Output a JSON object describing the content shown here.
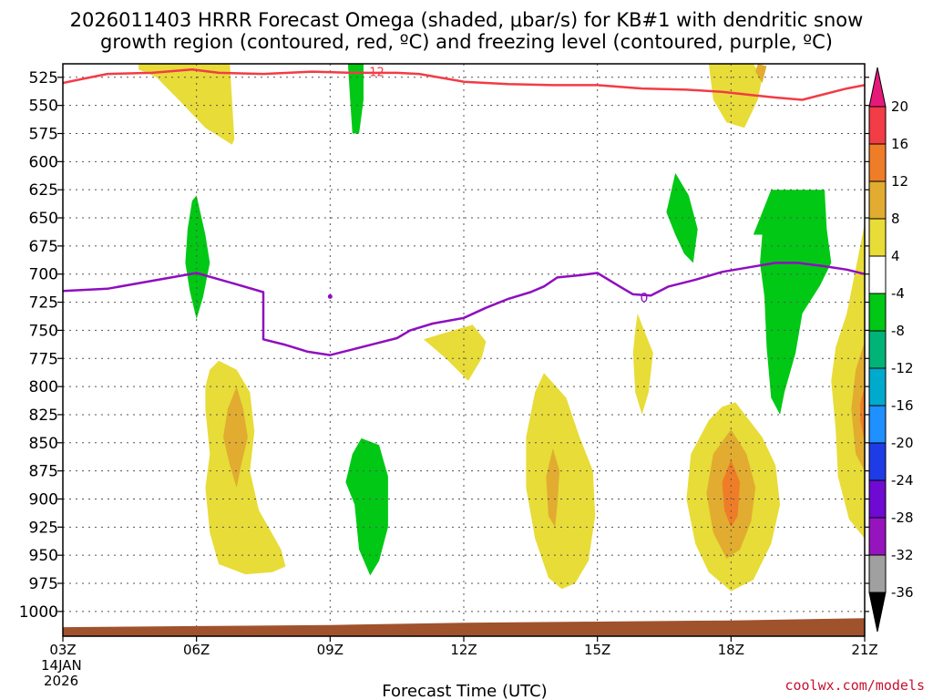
{
  "chart_data": {
    "type": "heatmap",
    "title_lines": [
      "2026011403 HRRR Forecast Omega (shaded, μbar/s) for KB#1 with dendritic snow",
      "growth region (contoured, red, ºC) and freezing level (contoured, purple, ºC)"
    ],
    "xlabel": "Forecast Time (UTC)",
    "x_ticks": [
      {
        "hour": 0,
        "label": "03Z"
      },
      {
        "hour": 3,
        "label": "06Z"
      },
      {
        "hour": 6,
        "label": "09Z"
      },
      {
        "hour": 9,
        "label": "12Z"
      },
      {
        "hour": 12,
        "label": "15Z"
      },
      {
        "hour": 15,
        "label": "18Z"
      },
      {
        "hour": 18,
        "label": "21Z"
      }
    ],
    "date_label": [
      "14JAN",
      "2026"
    ],
    "x_range_hours": [
      0,
      18
    ],
    "y_ticks": [
      "525",
      "550",
      "575",
      "600",
      "625",
      "650",
      "675",
      "700",
      "725",
      "750",
      "775",
      "800",
      "825",
      "850",
      "875",
      "900",
      "925",
      "950",
      "975",
      "1000"
    ],
    "y_range_hpa": [
      513,
      1022
    ],
    "grid": true,
    "colorbar": {
      "labels": [
        "20",
        "16",
        "12",
        "8",
        "4",
        "-4",
        "-8",
        "-12",
        "-16",
        "-20",
        "-24",
        "-28",
        "-32",
        "-36"
      ],
      "colors": [
        "#f23c46",
        "#ef7d28",
        "#e1ac30",
        "#e8dc38",
        "#ffffff",
        "#00c814",
        "#00b478",
        "#00aacc",
        "#1e90ff",
        "#1e3ce6",
        "#6e0ad2",
        "#9614be",
        "#a0a0a0"
      ],
      "top_arrow_color": "#e6197a",
      "bottom_arrow_color": "#000000"
    },
    "omega_colors": {
      "yellow": "#e8dc38",
      "orange1": "#e1ac30",
      "orange2": "#ef7d28",
      "green": "#00c814"
    },
    "omega_regions": [
      {
        "level": "yellow",
        "points": [
          [
            1.7,
            513
          ],
          [
            3.75,
            513
          ],
          [
            3.85,
            580
          ],
          [
            3.8,
            585
          ],
          [
            3.2,
            570
          ],
          [
            2.6,
            545
          ],
          [
            2.1,
            525
          ],
          [
            1.7,
            518
          ]
        ]
      },
      {
        "level": "yellow",
        "points": [
          [
            3.5,
            777
          ],
          [
            3.9,
            785
          ],
          [
            4.2,
            805
          ],
          [
            4.3,
            840
          ],
          [
            4.2,
            875
          ],
          [
            4.4,
            910
          ],
          [
            4.9,
            945
          ],
          [
            5.0,
            960
          ],
          [
            4.7,
            965
          ],
          [
            4.1,
            967
          ],
          [
            3.5,
            958
          ],
          [
            3.3,
            930
          ],
          [
            3.2,
            890
          ],
          [
            3.3,
            860
          ],
          [
            3.2,
            820
          ],
          [
            3.2,
            800
          ],
          [
            3.3,
            785
          ]
        ]
      },
      {
        "level": "orange1",
        "points": [
          [
            3.9,
            800
          ],
          [
            4.05,
            820
          ],
          [
            4.15,
            845
          ],
          [
            4.0,
            870
          ],
          [
            3.9,
            890
          ],
          [
            3.75,
            870
          ],
          [
            3.6,
            845
          ],
          [
            3.7,
            820
          ]
        ]
      },
      {
        "level": "green",
        "points": [
          [
            3.0,
            630
          ],
          [
            3.2,
            665
          ],
          [
            3.3,
            690
          ],
          [
            3.15,
            720
          ],
          [
            3.0,
            740
          ],
          [
            2.85,
            715
          ],
          [
            2.75,
            690
          ],
          [
            2.8,
            660
          ],
          [
            2.9,
            635
          ]
        ]
      },
      {
        "level": "green",
        "points": [
          [
            6.4,
            513
          ],
          [
            6.75,
            513
          ],
          [
            6.75,
            545
          ],
          [
            6.65,
            575
          ],
          [
            6.5,
            575
          ],
          [
            6.45,
            545
          ]
        ]
      },
      {
        "level": "green",
        "points": [
          [
            6.7,
            846
          ],
          [
            7.1,
            852
          ],
          [
            7.3,
            880
          ],
          [
            7.3,
            925
          ],
          [
            7.1,
            955
          ],
          [
            6.9,
            968
          ],
          [
            6.65,
            945
          ],
          [
            6.55,
            905
          ],
          [
            6.35,
            885
          ],
          [
            6.5,
            860
          ]
        ]
      },
      {
        "level": "yellow",
        "points": [
          [
            8.6,
            752
          ],
          [
            9.2,
            745
          ],
          [
            9.5,
            760
          ],
          [
            9.4,
            775
          ],
          [
            9.1,
            795
          ],
          [
            8.6,
            775
          ],
          [
            8.1,
            758
          ]
        ]
      },
      {
        "level": "yellow",
        "points": [
          [
            10.8,
            788
          ],
          [
            11.3,
            810
          ],
          [
            11.6,
            845
          ],
          [
            11.9,
            875
          ],
          [
            11.95,
            915
          ],
          [
            11.8,
            955
          ],
          [
            11.5,
            975
          ],
          [
            11.2,
            980
          ],
          [
            10.9,
            970
          ],
          [
            10.6,
            935
          ],
          [
            10.4,
            890
          ],
          [
            10.4,
            845
          ],
          [
            10.6,
            805
          ]
        ]
      },
      {
        "level": "orange1",
        "points": [
          [
            11.0,
            855
          ],
          [
            11.15,
            875
          ],
          [
            11.1,
            905
          ],
          [
            11.05,
            925
          ],
          [
            10.9,
            915
          ],
          [
            10.85,
            880
          ]
        ]
      },
      {
        "level": "yellow",
        "points": [
          [
            12.9,
            735
          ],
          [
            13.1,
            755
          ],
          [
            13.25,
            770
          ],
          [
            13.15,
            805
          ],
          [
            13.0,
            825
          ],
          [
            12.85,
            805
          ],
          [
            12.8,
            770
          ],
          [
            12.85,
            750
          ]
        ]
      },
      {
        "level": "green",
        "points": [
          [
            13.75,
            610
          ],
          [
            14.05,
            630
          ],
          [
            14.25,
            660
          ],
          [
            14.15,
            690
          ],
          [
            13.95,
            682
          ],
          [
            13.75,
            665
          ],
          [
            13.55,
            645
          ]
        ]
      },
      {
        "level": "yellow",
        "points": [
          [
            14.5,
            513
          ],
          [
            15.5,
            513
          ],
          [
            15.7,
            525
          ],
          [
            15.6,
            545
          ],
          [
            15.3,
            570
          ],
          [
            14.9,
            565
          ],
          [
            14.6,
            545
          ]
        ]
      },
      {
        "level": "orange1",
        "points": [
          [
            15.6,
            513
          ],
          [
            15.8,
            515
          ],
          [
            15.7,
            530
          ],
          [
            15.55,
            520
          ]
        ]
      },
      {
        "level": "green",
        "points": [
          [
            15.9,
            625
          ],
          [
            17.1,
            625
          ],
          [
            17.15,
            660
          ],
          [
            17.25,
            690
          ],
          [
            17.0,
            710
          ],
          [
            16.6,
            735
          ],
          [
            16.45,
            770
          ],
          [
            16.2,
            805
          ],
          [
            16.1,
            825
          ],
          [
            15.9,
            810
          ],
          [
            15.8,
            765
          ],
          [
            15.75,
            720
          ],
          [
            15.65,
            690
          ],
          [
            15.7,
            665
          ],
          [
            15.5,
            665
          ],
          [
            15.6,
            655
          ]
        ]
      },
      {
        "level": "yellow",
        "points": [
          [
            15.1,
            814
          ],
          [
            15.7,
            845
          ],
          [
            16.0,
            870
          ],
          [
            16.1,
            905
          ],
          [
            15.9,
            940
          ],
          [
            15.5,
            972
          ],
          [
            15.0,
            982
          ],
          [
            14.5,
            965
          ],
          [
            14.2,
            940
          ],
          [
            14.0,
            900
          ],
          [
            14.1,
            860
          ],
          [
            14.5,
            830
          ],
          [
            14.8,
            818
          ]
        ]
      },
      {
        "level": "orange1",
        "points": [
          [
            15.0,
            838
          ],
          [
            15.35,
            860
          ],
          [
            15.55,
            890
          ],
          [
            15.45,
            920
          ],
          [
            15.2,
            945
          ],
          [
            14.9,
            953
          ],
          [
            14.6,
            930
          ],
          [
            14.45,
            895
          ],
          [
            14.6,
            860
          ]
        ]
      },
      {
        "level": "orange2",
        "points": [
          [
            15.0,
            865
          ],
          [
            15.2,
            885
          ],
          [
            15.15,
            915
          ],
          [
            15.0,
            925
          ],
          [
            14.85,
            910
          ],
          [
            14.8,
            885
          ]
        ]
      },
      {
        "level": "yellow",
        "points": [
          [
            18.0,
            655
          ],
          [
            18.0,
            935
          ],
          [
            17.65,
            918
          ],
          [
            17.4,
            880
          ],
          [
            17.35,
            838
          ],
          [
            17.25,
            795
          ],
          [
            17.35,
            765
          ],
          [
            17.6,
            735
          ],
          [
            17.85,
            685
          ]
        ]
      },
      {
        "level": "orange1",
        "points": [
          [
            18.0,
            760
          ],
          [
            18.0,
            875
          ],
          [
            17.8,
            860
          ],
          [
            17.7,
            820
          ],
          [
            17.8,
            785
          ]
        ]
      },
      {
        "level": "orange2",
        "points": [
          [
            18.0,
            800
          ],
          [
            18.0,
            850
          ],
          [
            17.9,
            830
          ],
          [
            17.9,
            815
          ]
        ]
      }
    ],
    "dendritic_line": {
      "color": "#f23c46",
      "label": "-12",
      "label_at": [
        7.0,
        520
      ],
      "points": [
        [
          0,
          530
        ],
        [
          0.5,
          526
        ],
        [
          1.0,
          522
        ],
        [
          2.0,
          521
        ],
        [
          2.9,
          518
        ],
        [
          3.5,
          521
        ],
        [
          4.5,
          522
        ],
        [
          5.6,
          520
        ],
        [
          6.5,
          521
        ],
        [
          7.5,
          521
        ],
        [
          8.0,
          522
        ],
        [
          9.0,
          529
        ],
        [
          10.0,
          531
        ],
        [
          11.0,
          532
        ],
        [
          12.0,
          532
        ],
        [
          13.0,
          535
        ],
        [
          14.0,
          536
        ],
        [
          14.8,
          538
        ],
        [
          15.5,
          541
        ],
        [
          16.0,
          543
        ],
        [
          16.6,
          545
        ],
        [
          17.0,
          541
        ],
        [
          17.6,
          535
        ],
        [
          18.0,
          532
        ]
      ]
    },
    "freezing_line": {
      "color": "#8f0ebf",
      "label": "0",
      "label_at": [
        13.05,
        721
      ],
      "points": [
        [
          0,
          715
        ],
        [
          1.0,
          713
        ],
        [
          2.0,
          706
        ],
        [
          3.0,
          699
        ],
        [
          3.8,
          708
        ],
        [
          4.5,
          716
        ],
        [
          4.5,
          758
        ],
        [
          5.0,
          763
        ],
        [
          5.5,
          769
        ],
        [
          6.0,
          772
        ],
        [
          6.5,
          767
        ],
        [
          7.0,
          762
        ],
        [
          7.5,
          757
        ],
        [
          7.8,
          750
        ],
        [
          8.3,
          744
        ],
        [
          9.0,
          739
        ],
        [
          9.5,
          730
        ],
        [
          10.0,
          722
        ],
        [
          10.5,
          716
        ],
        [
          10.8,
          711
        ],
        [
          11.1,
          703
        ],
        [
          11.6,
          701
        ],
        [
          12.0,
          699
        ],
        [
          12.5,
          711
        ],
        [
          12.8,
          718
        ],
        [
          13.2,
          719
        ],
        [
          13.6,
          711
        ],
        [
          14.2,
          705
        ],
        [
          14.8,
          698
        ],
        [
          15.4,
          694
        ],
        [
          16.0,
          690
        ],
        [
          16.5,
          690
        ],
        [
          17.1,
          693
        ],
        [
          17.6,
          696
        ],
        [
          18.0,
          700
        ]
      ],
      "dot_at": [
        6.0,
        720
      ]
    },
    "ground": {
      "color": "#a0522d",
      "top_points": [
        [
          0,
          1014
        ],
        [
          3,
          1013
        ],
        [
          6,
          1012
        ],
        [
          9,
          1010
        ],
        [
          12,
          1009
        ],
        [
          15,
          1008
        ],
        [
          18,
          1006
        ]
      ]
    },
    "credit": "coolwx.com/models"
  }
}
